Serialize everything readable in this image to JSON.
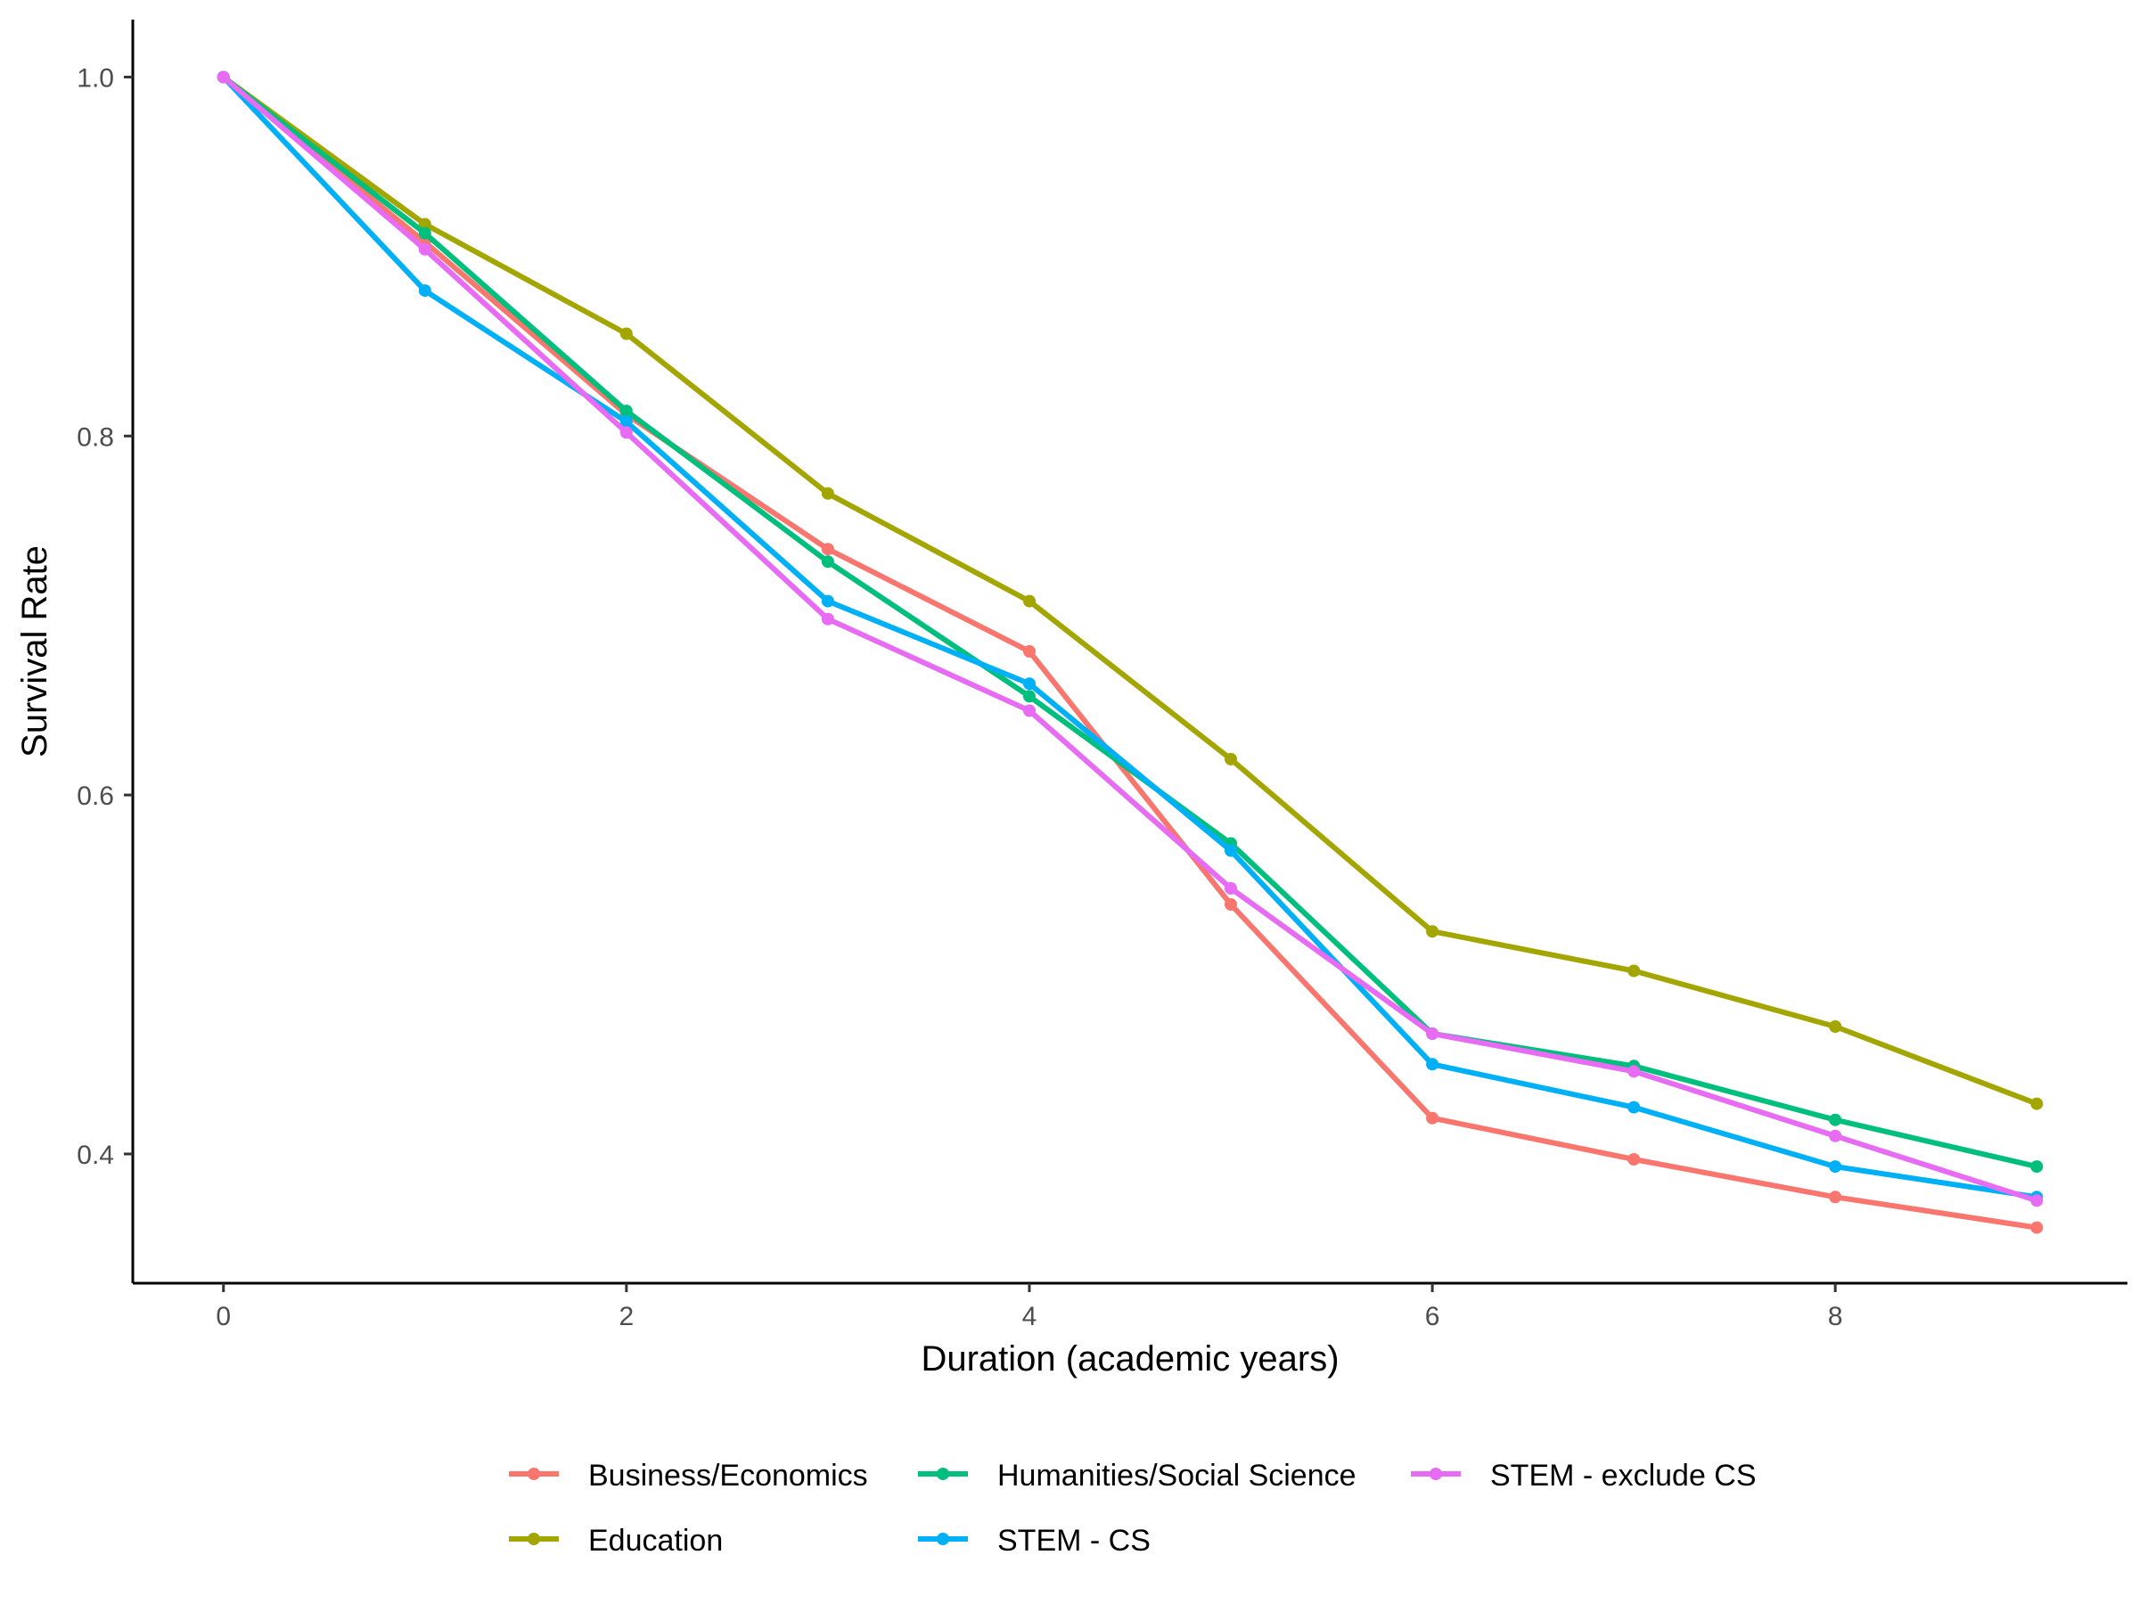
{
  "chart_data": {
    "type": "line",
    "title": "",
    "xlabel": "Duration (academic years)",
    "ylabel": "Survival Rate",
    "x": [
      0,
      1,
      2,
      3,
      4,
      5,
      6,
      7,
      8,
      9
    ],
    "xlim": [
      -0.45,
      9.45
    ],
    "ylim": [
      0.328,
      1.032
    ],
    "xticks": [
      0,
      2,
      4,
      6,
      8
    ],
    "xtick_labels": [
      "0",
      "2",
      "4",
      "6",
      "8"
    ],
    "yticks": [
      0.4,
      0.6,
      0.8,
      1.0
    ],
    "ytick_labels": [
      "0.4",
      "0.6",
      "0.8",
      "1.0"
    ],
    "grid": false,
    "legend_position": "bottom",
    "series": [
      {
        "name": "Business/Economics",
        "color": "#F8766D",
        "values": [
          1.0,
          0.908,
          0.812,
          0.737,
          0.68,
          0.539,
          0.42,
          0.397,
          0.376,
          0.359
        ]
      },
      {
        "name": "Education",
        "color": "#A3A500",
        "values": [
          1.0,
          0.918,
          0.857,
          0.768,
          0.708,
          0.62,
          0.524,
          0.502,
          0.471,
          0.428
        ]
      },
      {
        "name": "Humanities/Social Science",
        "color": "#00BF7D",
        "values": [
          1.0,
          0.913,
          0.814,
          0.73,
          0.655,
          0.573,
          0.467,
          0.449,
          0.419,
          0.393
        ]
      },
      {
        "name": "STEM - CS",
        "color": "#00B0F6",
        "values": [
          1.0,
          0.881,
          0.808,
          0.708,
          0.662,
          0.569,
          0.45,
          0.426,
          0.393,
          0.376
        ]
      },
      {
        "name": "STEM - exclude CS",
        "color": "#E76BF3",
        "values": [
          1.0,
          0.904,
          0.802,
          0.698,
          0.647,
          0.548,
          0.467,
          0.446,
          0.41,
          0.374
        ]
      }
    ]
  }
}
